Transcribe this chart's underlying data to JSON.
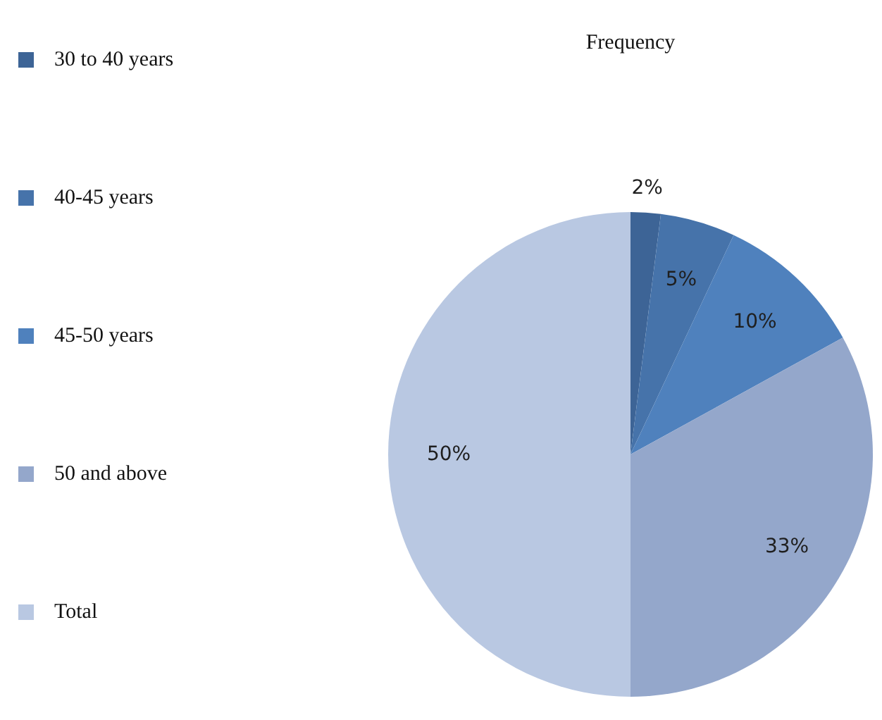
{
  "chart_data": {
    "type": "pie",
    "title": "Frequency",
    "categories": [
      "30 to 40 years",
      "40-45 years",
      "45-50 years",
      "50 and above",
      "Total"
    ],
    "values": [
      2,
      5,
      10,
      33,
      50
    ],
    "colors": [
      "#3d6496",
      "#4673aa",
      "#4f81bd",
      "#94a7cb",
      "#b9c8e2"
    ],
    "value_labels": [
      "2%",
      "5%",
      "10%",
      "33%",
      "50%"
    ],
    "legend": "left"
  }
}
